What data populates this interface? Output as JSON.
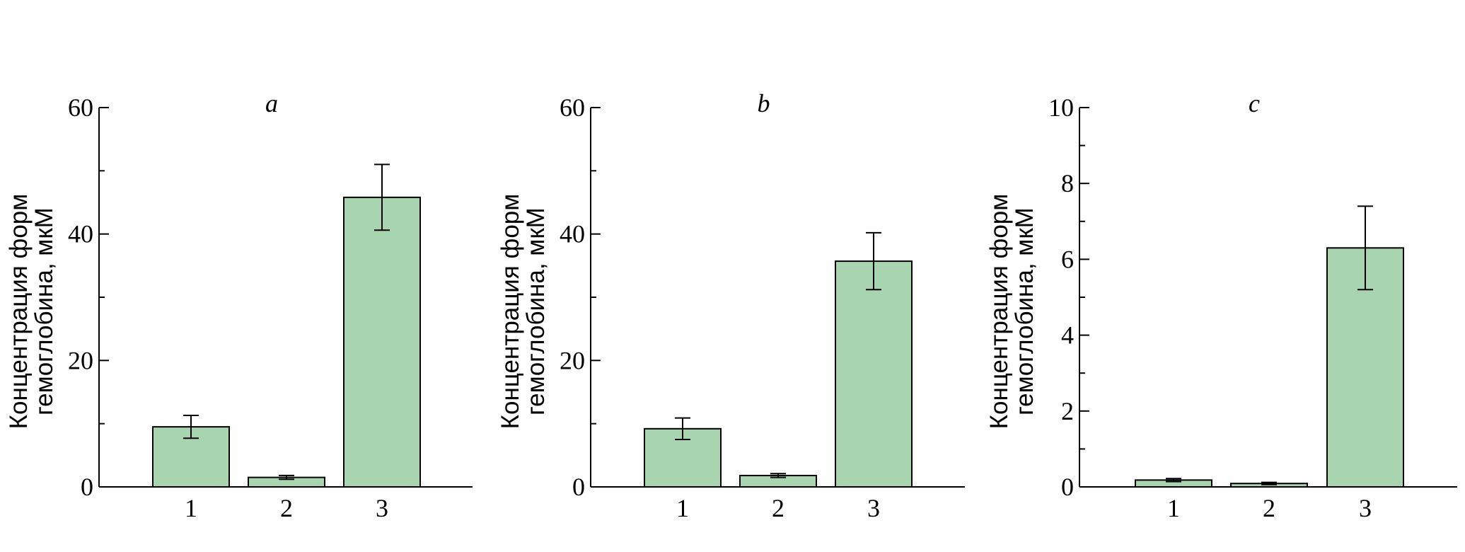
{
  "chart_data": [
    {
      "type": "bar",
      "title": "a",
      "ylabel_lines": [
        "Концентрация форм",
        "гемоглобина, мкМ"
      ],
      "categories": [
        "1",
        "2",
        "3"
      ],
      "values": [
        9.5,
        1.5,
        45.8
      ],
      "errors": [
        1.8,
        0.3,
        5.2
      ],
      "ylim": [
        0,
        60
      ],
      "major_ticks": [
        0,
        20,
        40,
        60
      ],
      "minor_ticks": [
        10,
        30,
        50
      ],
      "bar_color": "#a8d5b0",
      "grid": false,
      "legend": "none"
    },
    {
      "type": "bar",
      "title": "b",
      "ylabel_lines": [
        "Концентрация форм",
        "гемоглобина, мкМ"
      ],
      "categories": [
        "1",
        "2",
        "3"
      ],
      "values": [
        9.2,
        1.8,
        35.7
      ],
      "errors": [
        1.7,
        0.3,
        4.5
      ],
      "ylim": [
        0,
        60
      ],
      "major_ticks": [
        0,
        20,
        40,
        60
      ],
      "minor_ticks": [
        10,
        30,
        50
      ],
      "bar_color": "#a8d5b0",
      "grid": false,
      "legend": "none"
    },
    {
      "type": "bar",
      "title": "c",
      "ylabel_lines": [
        "Концентрация форм",
        "гемоглобина, мкМ"
      ],
      "categories": [
        "1",
        "2",
        "3"
      ],
      "values": [
        0.18,
        0.09,
        6.3
      ],
      "errors": [
        0.04,
        0.03,
        1.1
      ],
      "ylim": [
        0,
        10
      ],
      "major_ticks": [
        0,
        2,
        4,
        6,
        8,
        10
      ],
      "minor_ticks": [
        1,
        3,
        5,
        7,
        9
      ],
      "bar_color": "#a8d5b0",
      "grid": false,
      "legend": "none"
    }
  ]
}
